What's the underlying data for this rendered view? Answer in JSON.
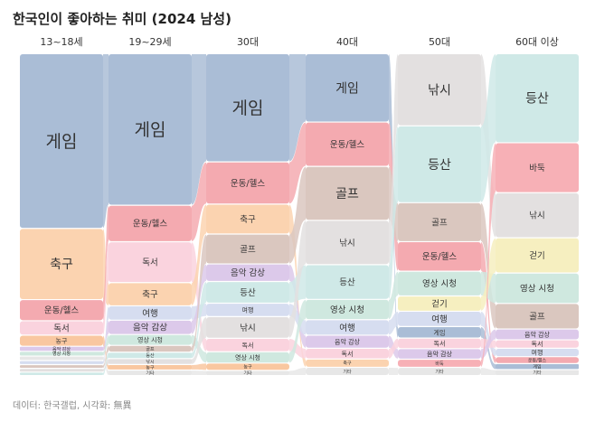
{
  "page": {
    "title": "한국인이 좋아하는 취미 (2024 남성)",
    "source": "데이터: 한국갤럽, 시각화: 無異"
  },
  "chart_data": {
    "type": "sankey-bump",
    "title": "한국인이 좋아하는 취미 (2024 남성)",
    "columns": [
      "13~18세",
      "19~29세",
      "30대",
      "40대",
      "50대",
      "60대 이상"
    ],
    "hobbies": {
      "게임": "#aabdd6",
      "축구": "#fbd3b0",
      "운동/헬스": "#f4aab0",
      "독서": "#fad3de",
      "농구": "#f9c7a0",
      "음악 감상": "#dcc9ea",
      "영상 시청": "#cfe8df",
      "여행": "#d6ddf0",
      "골프": "#dac7bf",
      "등산": "#cfe9e7",
      "낚시": "#e3e0e0",
      "바둑": "#f7b0b6",
      "걷기": "#f6efc0",
      "기타": "#e7e7e7"
    },
    "stacks": [
      [
        {
          "name": "게임",
          "value": 52
        },
        {
          "name": "축구",
          "value": 21
        },
        {
          "name": "운동/헬스",
          "value": 6
        },
        {
          "name": "독서",
          "value": 4
        },
        {
          "name": "농구",
          "value": 3
        },
        {
          "name": "음악 감상",
          "value": 1.2
        },
        {
          "name": "영상 시청",
          "value": 1.1
        },
        {
          "name": "기타",
          "value": 1
        },
        {
          "name": "여행",
          "value": 0.9
        },
        {
          "name": "골프",
          "value": 0.8
        },
        {
          "name": "낚시",
          "value": 0.8
        },
        {
          "name": "등산",
          "value": 0.7
        }
      ],
      [
        {
          "name": "게임",
          "value": 34
        },
        {
          "name": "운동/헬스",
          "value": 8
        },
        {
          "name": "독서",
          "value": 9
        },
        {
          "name": "축구",
          "value": 5
        },
        {
          "name": "여행",
          "value": 3
        },
        {
          "name": "음악 감상",
          "value": 3
        },
        {
          "name": "영상 시청",
          "value": 2.2
        },
        {
          "name": "골프",
          "value": 1.3
        },
        {
          "name": "등산",
          "value": 1.2
        },
        {
          "name": "낚시",
          "value": 1.1
        },
        {
          "name": "농구",
          "value": 1
        },
        {
          "name": "기타",
          "value": 1
        }
      ],
      [
        {
          "name": "게임",
          "value": 26
        },
        {
          "name": "운동/헬스",
          "value": 10
        },
        {
          "name": "축구",
          "value": 7
        },
        {
          "name": "골프",
          "value": 7
        },
        {
          "name": "음악 감상",
          "value": 4
        },
        {
          "name": "등산",
          "value": 5
        },
        {
          "name": "여행",
          "value": 3
        },
        {
          "name": "낚시",
          "value": 5
        },
        {
          "name": "독서",
          "value": 3
        },
        {
          "name": "영상 시청",
          "value": 2.5
        },
        {
          "name": "농구",
          "value": 1.5
        },
        {
          "name": "기타",
          "value": 1
        }
      ],
      [
        {
          "name": "게임",
          "value": 14
        },
        {
          "name": "운동/헬스",
          "value": 9
        },
        {
          "name": "골프",
          "value": 11
        },
        {
          "name": "낚시",
          "value": 9
        },
        {
          "name": "등산",
          "value": 7
        },
        {
          "name": "영상 시청",
          "value": 4
        },
        {
          "name": "여행",
          "value": 3
        },
        {
          "name": "음악 감상",
          "value": 2.5
        },
        {
          "name": "독서",
          "value": 2
        },
        {
          "name": "축구",
          "value": 1.5
        },
        {
          "name": "기타",
          "value": 1.5
        }
      ],
      [
        {
          "name": "낚시",
          "value": 15
        },
        {
          "name": "등산",
          "value": 16
        },
        {
          "name": "골프",
          "value": 8
        },
        {
          "name": "운동/헬스",
          "value": 6
        },
        {
          "name": "영상 시청",
          "value": 5
        },
        {
          "name": "걷기",
          "value": 3
        },
        {
          "name": "여행",
          "value": 3
        },
        {
          "name": "게임",
          "value": 2.2
        },
        {
          "name": "독서",
          "value": 2
        },
        {
          "name": "음악 감상",
          "value": 2
        },
        {
          "name": "바둑",
          "value": 1.5
        },
        {
          "name": "기타",
          "value": 1.5
        }
      ],
      [
        {
          "name": "등산",
          "value": 18
        },
        {
          "name": "바둑",
          "value": 10
        },
        {
          "name": "낚시",
          "value": 9
        },
        {
          "name": "걷기",
          "value": 7
        },
        {
          "name": "영상 시청",
          "value": 6
        },
        {
          "name": "골프",
          "value": 5
        },
        {
          "name": "음악 감상",
          "value": 2
        },
        {
          "name": "독서",
          "value": 1.5
        },
        {
          "name": "여행",
          "value": 1.5
        },
        {
          "name": "운동/헬스",
          "value": 1.2
        },
        {
          "name": "게임",
          "value": 1
        },
        {
          "name": "기타",
          "value": 1
        }
      ]
    ]
  }
}
